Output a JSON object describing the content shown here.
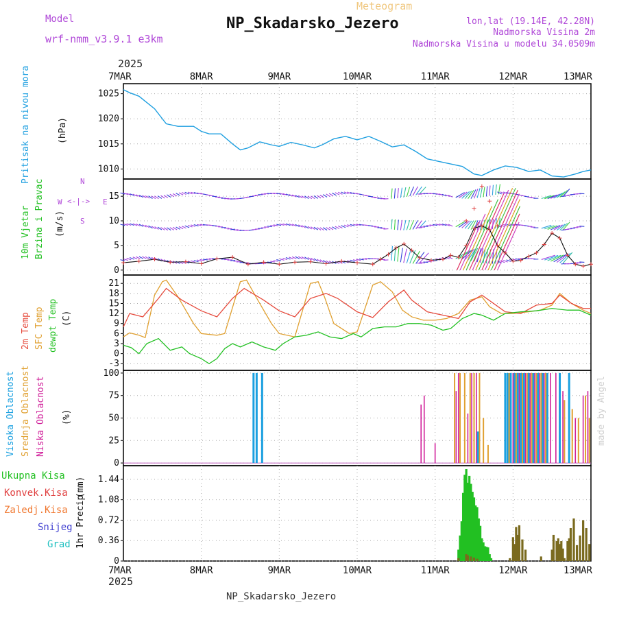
{
  "header": {
    "meteogram_label": "Meteogram",
    "station_title": "NP_Skadarsko_Jezero",
    "model_label": "Model",
    "model_name": "wrf-nmm_v3.9.1 e3km",
    "lonlat": "lon,lat (19.14E, 42.28N)",
    "altitude": "Nadmorska Visina 2m",
    "model_altitude": "Nadmorska Visina u modelu 34.0509m",
    "year_top": "2025",
    "year_bottom": "2025",
    "footer_station": "NP_Skadarsko_Jezero",
    "credit": "made by Angel"
  },
  "colors": {
    "pressure": "#1e9fe0",
    "label_green": "#22c022",
    "temp2m": "#e64a3c",
    "sfc": "#e0a030",
    "dew": "#22c022",
    "high_cloud": "#1aa0e0",
    "mid_cloud": "#e0a030",
    "low_cloud": "#d0209a",
    "snow": "#4040d0",
    "grad": "#20c0c0",
    "conv": "#e04040",
    "frozen": "#f07830",
    "purple": "#b048d8"
  },
  "chart_data": [
    {
      "id": "pressure",
      "type": "line",
      "ylabel_side": "Pritisak na nivou mora",
      "ylabel_unit": "(hPa)",
      "x_days": [
        "7MAR",
        "8MAR",
        "9MAR",
        "10MAR",
        "11MAR",
        "12MAR",
        "13MAR"
      ],
      "yticks": [
        "1010",
        "1015",
        "1020",
        "1025"
      ],
      "ytick_values": [
        1010,
        1015,
        1020,
        1025
      ],
      "ylim": [
        1008,
        1027
      ],
      "series": [
        {
          "name": "MSLP",
          "x": [
            0,
            0.08,
            0.2,
            0.4,
            0.55,
            0.7,
            0.9,
            1.0,
            1.1,
            1.25,
            1.4,
            1.5,
            1.6,
            1.75,
            1.9,
            2.0,
            2.15,
            2.3,
            2.45,
            2.55,
            2.7,
            2.85,
            3.0,
            3.15,
            3.3,
            3.45,
            3.6,
            3.75,
            3.9,
            4.05,
            4.2,
            4.35,
            4.5,
            4.6,
            4.75,
            4.9,
            5.05,
            5.2,
            5.35,
            5.5,
            5.65,
            5.8,
            5.9,
            6.0
          ],
          "values": [
            1025.8,
            1025.2,
            1024.5,
            1022.0,
            1019.0,
            1018.5,
            1018.5,
            1017.5,
            1017.0,
            1017.0,
            1015.0,
            1013.8,
            1014.2,
            1015.4,
            1014.8,
            1014.5,
            1015.3,
            1014.8,
            1014.2,
            1014.8,
            1016.0,
            1016.5,
            1015.8,
            1016.5,
            1015.5,
            1014.4,
            1014.8,
            1013.5,
            1012.0,
            1011.5,
            1011.0,
            1010.5,
            1009.0,
            1008.7,
            1009.8,
            1010.6,
            1010.3,
            1009.5,
            1009.8,
            1008.6,
            1008.4,
            1009.0,
            1009.5,
            1009.8
          ]
        }
      ]
    },
    {
      "id": "wind",
      "type": "line",
      "ylabel_side": [
        "10m Vjetar",
        "Brzina i Pravac"
      ],
      "ylabel_unit": "(m/s)",
      "compass": {
        "n": "N",
        "s": "S",
        "w": "W",
        "e": "E"
      },
      "yticks": [
        "0",
        "5",
        "10",
        "15"
      ],
      "ytick_values": [
        0,
        5,
        10,
        15
      ],
      "ylim": [
        -1,
        18.5
      ],
      "series": [
        {
          "name": "wind speed",
          "x": [
            0,
            0.2,
            0.4,
            0.6,
            0.8,
            1.0,
            1.2,
            1.4,
            1.6,
            1.8,
            2.0,
            2.2,
            2.4,
            2.6,
            2.8,
            3.0,
            3.2,
            3.3,
            3.4,
            3.5,
            3.6,
            3.7,
            3.8,
            3.95,
            4.1,
            4.2,
            4.3,
            4.4,
            4.5,
            4.6,
            4.7,
            4.8,
            4.9,
            5.0,
            5.1,
            5.2,
            5.3,
            5.4,
            5.5,
            5.6,
            5.7,
            5.8,
            5.9,
            6.0
          ],
          "values": [
            1.5,
            1.8,
            2.2,
            1.6,
            1.7,
            1.3,
            2.3,
            2.6,
            1.2,
            1.6,
            1.2,
            1.6,
            1.7,
            1.3,
            1.8,
            1.5,
            1.2,
            2.2,
            3.2,
            4.5,
            5.3,
            4.0,
            2.5,
            2.0,
            2.2,
            3.0,
            2.6,
            5.0,
            8.5,
            9.0,
            8.2,
            5.0,
            3.5,
            1.8,
            2.0,
            2.8,
            3.5,
            5.2,
            7.5,
            6.5,
            3.0,
            1.2,
            0.8,
            1.2
          ]
        },
        {
          "name": "gust",
          "x": [
            4.4,
            4.5,
            4.6,
            4.7,
            4.8
          ],
          "values": [
            10.0,
            12.5,
            17.0,
            14.0,
            9.0
          ]
        }
      ]
    },
    {
      "id": "temperature",
      "type": "line",
      "ylabel_side": [
        "2m Temp",
        "SFC Temp",
        "dewpt Temp"
      ],
      "ylabel_unit": "(C)",
      "yticks": [
        "-3",
        "0",
        "3",
        "6",
        "9",
        "12",
        "15",
        "18",
        "21"
      ],
      "ytick_values": [
        -3,
        0,
        3,
        6,
        9,
        12,
        15,
        18,
        21
      ],
      "ylim": [
        -5,
        23.5
      ],
      "series": [
        {
          "name": "2m Temp",
          "x": [
            0,
            0.08,
            0.25,
            0.45,
            0.55,
            0.75,
            1.0,
            1.2,
            1.4,
            1.55,
            1.8,
            2.0,
            2.2,
            2.4,
            2.6,
            2.75,
            3.0,
            3.2,
            3.4,
            3.6,
            3.7,
            3.9,
            4.1,
            4.3,
            4.45,
            4.6,
            4.75,
            4.9,
            5.1,
            5.3,
            5.5,
            5.6,
            5.75,
            5.9,
            6.0
          ],
          "values": [
            8.0,
            12.0,
            11.0,
            16.5,
            19.5,
            16.0,
            12.8,
            11.0,
            16.5,
            19.5,
            16.0,
            12.8,
            11.0,
            16.5,
            18.0,
            16.5,
            12.5,
            10.8,
            15.5,
            19.0,
            16.0,
            12.5,
            11.5,
            10.5,
            15.5,
            17.5,
            15.0,
            12.5,
            12.0,
            14.5,
            15.0,
            17.5,
            15.0,
            13.5,
            13.5
          ]
        },
        {
          "name": "SFC Temp",
          "x": [
            0,
            0.08,
            0.2,
            0.28,
            0.4,
            0.5,
            0.55,
            0.7,
            0.9,
            1.0,
            1.2,
            1.3,
            1.5,
            1.58,
            1.7,
            1.9,
            2.0,
            2.2,
            2.4,
            2.5,
            2.58,
            2.7,
            2.9,
            3.0,
            3.2,
            3.3,
            3.45,
            3.58,
            3.7,
            3.85,
            4.0,
            4.15,
            4.3,
            4.45,
            4.6,
            4.7,
            4.85,
            5.0,
            5.2,
            5.35,
            5.5,
            5.6,
            5.75,
            5.9,
            6.0
          ],
          "values": [
            5.0,
            6.2,
            5.5,
            4.8,
            17.5,
            21.5,
            22.0,
            17.0,
            9.0,
            6.0,
            5.5,
            6.0,
            21.5,
            22.0,
            17.0,
            9.0,
            6.0,
            5.0,
            21.0,
            21.5,
            17.0,
            9.0,
            6.0,
            6.5,
            20.5,
            21.5,
            18.5,
            13.0,
            11.0,
            10.0,
            10.0,
            10.5,
            12.0,
            16.0,
            17.0,
            14.0,
            12.0,
            12.0,
            12.5,
            13.0,
            14.5,
            18.0,
            15.0,
            13.0,
            12.0
          ]
        },
        {
          "name": "dewpt Temp",
          "x": [
            0,
            0.1,
            0.2,
            0.3,
            0.45,
            0.6,
            0.75,
            0.85,
            1.0,
            1.1,
            1.2,
            1.3,
            1.4,
            1.5,
            1.65,
            1.8,
            1.95,
            2.05,
            2.2,
            2.35,
            2.5,
            2.65,
            2.8,
            2.95,
            3.05,
            3.2,
            3.35,
            3.5,
            3.65,
            3.8,
            3.95,
            4.1,
            4.2,
            4.35,
            4.5,
            4.6,
            4.75,
            4.9,
            5.1,
            5.3,
            5.5,
            5.7,
            5.85,
            6.0
          ],
          "values": [
            2.5,
            1.8,
            0.0,
            3.0,
            4.5,
            1.0,
            2.0,
            0.0,
            -1.5,
            -3.0,
            -1.5,
            1.5,
            3.0,
            2.0,
            3.5,
            2.0,
            1.0,
            3.0,
            5.0,
            5.5,
            6.5,
            5.0,
            4.5,
            6.0,
            5.0,
            7.5,
            8.0,
            8.0,
            9.0,
            9.0,
            8.5,
            7.0,
            7.5,
            10.5,
            12.0,
            11.5,
            10.0,
            12.0,
            12.5,
            12.8,
            13.5,
            13.0,
            13.0,
            11.5
          ]
        }
      ]
    },
    {
      "id": "cloud",
      "type": "bar",
      "ylabel_side": [
        "Visoka Oblacnost",
        "Srednja Oblacnost",
        "Niska Oblacnost"
      ],
      "ylabel_unit": "(%)",
      "yticks": [
        "0",
        "25",
        "50",
        "75",
        "100"
      ],
      "ytick_values": [
        0,
        25,
        50,
        75,
        100
      ],
      "ylim": [
        -3,
        103
      ],
      "series": [
        {
          "name": "Visoka Oblacnost",
          "x": [
            1.67,
            1.71,
            1.78,
            4.55,
            4.9,
            4.93,
            4.97,
            5.02,
            5.06,
            5.1,
            5.14,
            5.2,
            5.26,
            5.32,
            5.38,
            5.44,
            5.6,
            5.72
          ],
          "values": [
            100,
            100,
            100,
            35,
            100,
            100,
            100,
            100,
            100,
            100,
            100,
            100,
            100,
            100,
            100,
            100,
            100,
            100
          ]
        },
        {
          "name": "Srednja Oblacnost",
          "x": [
            4.25,
            4.32,
            4.38,
            4.45,
            4.5,
            4.57,
            4.62,
            4.68,
            4.95,
            5.04,
            5.12,
            5.18,
            5.24,
            5.3,
            5.36,
            5.42,
            5.66,
            5.76,
            5.84,
            5.93,
            5.98
          ],
          "values": [
            100,
            100,
            100,
            100,
            100,
            100,
            50,
            20,
            100,
            100,
            100,
            100,
            100,
            100,
            100,
            100,
            70,
            60,
            50,
            75,
            50
          ]
        },
        {
          "name": "Niska Oblacnost",
          "x": [
            3.82,
            3.86,
            4.0,
            4.27,
            4.3,
            4.42,
            4.47,
            4.53,
            5.0,
            5.08,
            5.16,
            5.22,
            5.28,
            5.34,
            5.4,
            5.48,
            5.55,
            5.64,
            5.8,
            5.9,
            5.96
          ],
          "values": [
            65,
            75,
            22,
            80,
            100,
            55,
            100,
            100,
            100,
            100,
            100,
            100,
            100,
            100,
            100,
            100,
            100,
            80,
            50,
            75,
            80
          ]
        }
      ]
    },
    {
      "id": "precip",
      "type": "bar",
      "legend": [
        "Ukupna Kisa",
        "Konvek.Kisa",
        "Zaledj.Kisa",
        "Snijeg",
        "Grad"
      ],
      "ylabel_side": "1hr Precip",
      "ylabel_unit": "(mm)",
      "yticks": [
        "0",
        "0.36",
        "0.72",
        "1.08",
        "1.44"
      ],
      "ytick_values": [
        0,
        0.36,
        0.72,
        1.08,
        1.44
      ],
      "ylim": [
        0,
        1.68
      ],
      "series": [
        {
          "name": "Ukupna Kisa",
          "x": [
            4.3,
            4.32,
            4.34,
            4.36,
            4.38,
            4.4,
            4.42,
            4.44,
            4.46,
            4.48,
            4.5,
            4.52,
            4.54,
            4.56,
            4.58,
            4.6,
            4.62,
            4.64,
            4.66,
            4.68,
            4.7,
            4.72
          ],
          "values": [
            0.2,
            0.45,
            0.7,
            1.2,
            1.52,
            1.62,
            1.38,
            1.5,
            1.36,
            1.22,
            1.12,
            0.98,
            0.95,
            0.75,
            0.62,
            0.4,
            0.33,
            0.26,
            0.25,
            0.24,
            0.12,
            0.05
          ]
        },
        {
          "name": "Konvek.Kisa",
          "x": [
            4.3,
            4.4,
            4.42,
            4.46,
            4.5,
            4.54,
            4.96,
            5.0,
            5.02,
            5.04,
            5.06,
            5.08,
            5.12,
            5.16,
            5.36,
            5.5,
            5.52,
            5.56,
            5.58,
            5.6,
            5.62,
            5.64,
            5.66,
            5.7,
            5.72,
            5.74,
            5.78,
            5.82,
            5.86,
            5.9,
            5.94,
            5.98
          ],
          "values": [
            0.05,
            0.12,
            0.1,
            0.08,
            0.06,
            0.04,
            0.05,
            0.42,
            0.3,
            0.6,
            0.46,
            0.63,
            0.38,
            0.2,
            0.08,
            0.2,
            0.46,
            0.35,
            0.4,
            0.3,
            0.35,
            0.22,
            0.05,
            0.35,
            0.4,
            0.58,
            0.75,
            0.28,
            0.45,
            0.72,
            0.58,
            0.3
          ]
        }
      ]
    }
  ]
}
